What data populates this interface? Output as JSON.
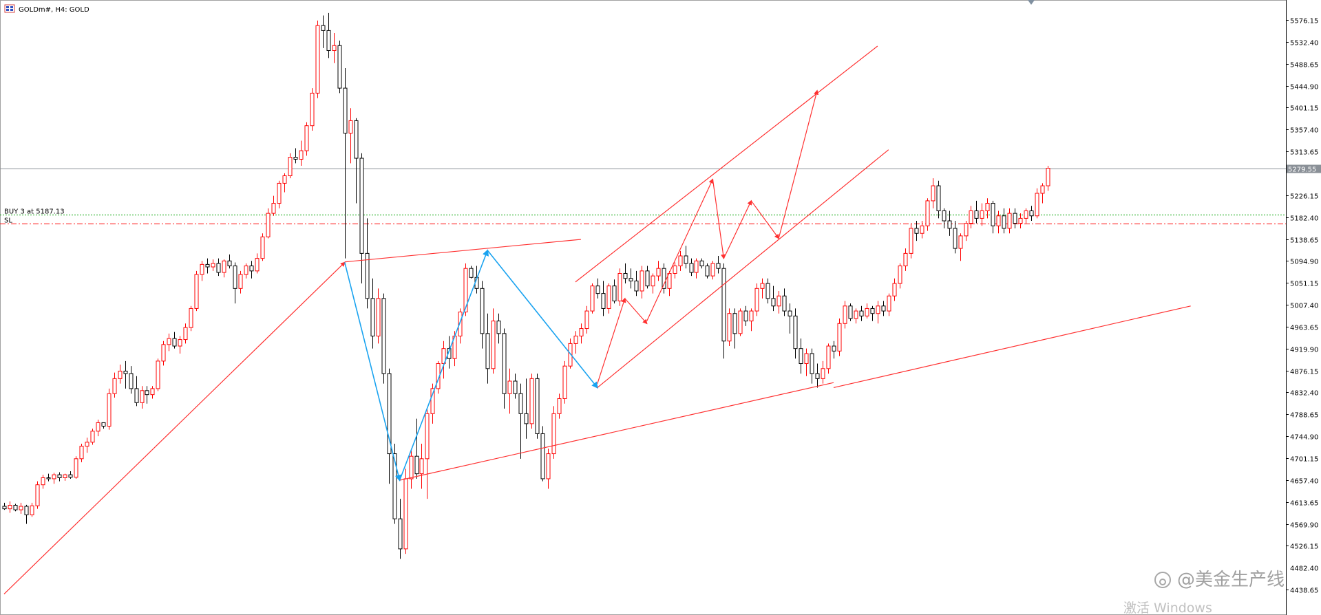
{
  "window": {
    "title": "GOLDm#, H4:  GOLD",
    "icon": "chart-window-icon"
  },
  "chart_data": {
    "type": "candlestick",
    "symbol": "GOLDm#",
    "timeframe": "H4",
    "description": "GOLD",
    "grid": false,
    "y_axis": {
      "position": "right",
      "ticks": [
        5576.15,
        5532.4,
        5488.65,
        5444.9,
        5401.15,
        5357.4,
        5313.65,
        5226.15,
        5182.4,
        5138.65,
        5094.9,
        5051.15,
        5007.4,
        4963.65,
        4919.9,
        4876.15,
        4832.4,
        4788.65,
        4744.9,
        4701.15,
        4657.4,
        4613.65,
        4569.9,
        4526.15,
        4438.65
      ],
      "ylim": [
        4425,
        5600
      ]
    },
    "current_price": 5279.55,
    "current_price_label": "5279.55",
    "order": {
      "label": "BUY 3 at 5187.13",
      "price": 5187.13
    },
    "stop_loss": {
      "label": "SL",
      "price": 5170.0
    },
    "bull_color": "#ff0000",
    "bear_color": "#000000",
    "candles": [
      [
        4605,
        4612,
        4598,
        4600
      ],
      [
        4600,
        4615,
        4592,
        4607
      ],
      [
        4607,
        4610,
        4595,
        4598
      ],
      [
        4598,
        4612,
        4590,
        4605
      ],
      [
        4605,
        4608,
        4570,
        4588
      ],
      [
        4588,
        4612,
        4584,
        4606
      ],
      [
        4606,
        4655,
        4600,
        4648
      ],
      [
        4648,
        4668,
        4640,
        4662
      ],
      [
        4662,
        4670,
        4655,
        4660
      ],
      [
        4660,
        4672,
        4650,
        4668
      ],
      [
        4668,
        4673,
        4655,
        4662
      ],
      [
        4662,
        4670,
        4656,
        4668
      ],
      [
        4668,
        4675,
        4660,
        4663
      ],
      [
        4663,
        4705,
        4660,
        4700
      ],
      [
        4700,
        4730,
        4693,
        4725
      ],
      [
        4725,
        4742,
        4712,
        4733
      ],
      [
        4733,
        4760,
        4728,
        4755
      ],
      [
        4755,
        4778,
        4745,
        4772
      ],
      [
        4772,
        4770,
        4760,
        4765
      ],
      [
        4765,
        4840,
        4758,
        4830
      ],
      [
        4830,
        4872,
        4822,
        4860
      ],
      [
        4860,
        4888,
        4850,
        4875
      ],
      [
        4875,
        4895,
        4840,
        4870
      ],
      [
        4870,
        4885,
        4830,
        4840
      ],
      [
        4840,
        4865,
        4805,
        4812
      ],
      [
        4812,
        4845,
        4800,
        4836
      ],
      [
        4836,
        4845,
        4810,
        4828
      ],
      [
        4828,
        4845,
        4820,
        4840
      ],
      [
        4840,
        4900,
        4835,
        4895
      ],
      [
        4895,
        4935,
        4886,
        4928
      ],
      [
        4928,
        4950,
        4915,
        4940
      ],
      [
        4940,
        4953,
        4920,
        4925
      ],
      [
        4925,
        4945,
        4910,
        4938
      ],
      [
        4938,
        4970,
        4930,
        4962
      ],
      [
        4962,
        5005,
        4955,
        5000
      ],
      [
        5000,
        5075,
        4995,
        5068
      ],
      [
        5068,
        5095,
        5055,
        5088
      ],
      [
        5088,
        5100,
        5070,
        5083
      ],
      [
        5083,
        5098,
        5075,
        5090
      ],
      [
        5090,
        5100,
        5065,
        5072
      ],
      [
        5072,
        5098,
        5062,
        5095
      ],
      [
        5095,
        5108,
        5080,
        5085
      ],
      [
        5085,
        5092,
        5010,
        5040
      ],
      [
        5040,
        5075,
        5030,
        5068
      ],
      [
        5068,
        5090,
        5060,
        5085
      ],
      [
        5085,
        5095,
        5060,
        5075
      ],
      [
        5075,
        5110,
        5070,
        5100
      ],
      [
        5100,
        5150,
        5095,
        5143
      ],
      [
        5143,
        5200,
        5140,
        5190
      ],
      [
        5190,
        5225,
        5185,
        5210
      ],
      [
        5210,
        5255,
        5200,
        5250
      ],
      [
        5250,
        5270,
        5232,
        5265
      ],
      [
        5265,
        5310,
        5260,
        5302
      ],
      [
        5302,
        5320,
        5290,
        5298
      ],
      [
        5298,
        5335,
        5285,
        5315
      ],
      [
        5315,
        5372,
        5305,
        5365
      ],
      [
        5365,
        5440,
        5355,
        5430
      ],
      [
        5430,
        5575,
        5420,
        5565
      ],
      [
        5565,
        5585,
        5520,
        5555
      ],
      [
        5555,
        5590,
        5500,
        5515
      ],
      [
        5515,
        5550,
        5490,
        5525
      ],
      [
        5525,
        5535,
        5430,
        5440
      ],
      [
        5440,
        5480,
        5100,
        5350
      ],
      [
        5350,
        5400,
        5290,
        5375
      ],
      [
        5375,
        5380,
        5210,
        5300
      ],
      [
        5300,
        5310,
        5050,
        5110
      ],
      [
        5110,
        5180,
        5000,
        5020
      ],
      [
        5020,
        5060,
        4920,
        4945
      ],
      [
        4945,
        5040,
        4930,
        5020
      ],
      [
        5020,
        5030,
        4850,
        4870
      ],
      [
        4870,
        4880,
        4650,
        4710
      ],
      [
        4710,
        4730,
        4570,
        4580
      ],
      [
        4580,
        4620,
        4500,
        4520
      ],
      [
        4520,
        4680,
        4510,
        4660
      ],
      [
        4660,
        4720,
        4640,
        4705
      ],
      [
        4705,
        4780,
        4660,
        4670
      ],
      [
        4670,
        4730,
        4640,
        4700
      ],
      [
        4700,
        4800,
        4620,
        4790
      ],
      [
        4790,
        4850,
        4770,
        4840
      ],
      [
        4840,
        4895,
        4830,
        4890
      ],
      [
        4890,
        4935,
        4860,
        4920
      ],
      [
        4920,
        4945,
        4880,
        4900
      ],
      [
        4900,
        4955,
        4885,
        4945
      ],
      [
        4945,
        5000,
        4930,
        4993
      ],
      [
        4993,
        5090,
        4985,
        5080
      ],
      [
        5080,
        5085,
        5060,
        5062
      ],
      [
        5062,
        5085,
        5030,
        5040
      ],
      [
        5040,
        5055,
        4920,
        4950
      ],
      [
        4950,
        4990,
        4850,
        4880
      ],
      [
        4880,
        5000,
        4870,
        4975
      ],
      [
        4975,
        4990,
        4930,
        4950
      ],
      [
        4950,
        4960,
        4800,
        4830
      ],
      [
        4830,
        4880,
        4790,
        4855
      ],
      [
        4855,
        4870,
        4820,
        4830
      ],
      [
        4830,
        4850,
        4700,
        4790
      ],
      [
        4790,
        4860,
        4740,
        4770
      ],
      [
        4770,
        4870,
        4760,
        4860
      ],
      [
        4860,
        4870,
        4740,
        4750
      ],
      [
        4750,
        4765,
        4655,
        4660
      ],
      [
        4660,
        4720,
        4640,
        4710
      ],
      [
        4710,
        4805,
        4700,
        4790
      ],
      [
        4790,
        4830,
        4780,
        4820
      ],
      [
        4820,
        4895,
        4810,
        4885
      ],
      [
        4885,
        4940,
        4880,
        4930
      ],
      [
        4930,
        4955,
        4910,
        4945
      ],
      [
        4945,
        4970,
        4930,
        4960
      ],
      [
        4960,
        5005,
        4950,
        4995
      ],
      [
        4995,
        5050,
        4990,
        5045
      ],
      [
        5045,
        5060,
        5020,
        5030
      ],
      [
        5030,
        5055,
        4985,
        5000
      ],
      [
        5000,
        5050,
        4990,
        5045
      ],
      [
        5045,
        5058,
        5010,
        5015
      ],
      [
        5015,
        5080,
        5005,
        5070
      ],
      [
        5070,
        5090,
        5050,
        5060
      ],
      [
        5060,
        5080,
        5040,
        5055
      ],
      [
        5055,
        5075,
        5025,
        5035
      ],
      [
        5035,
        5085,
        5020,
        5075
      ],
      [
        5075,
        5085,
        5040,
        5045
      ],
      [
        5045,
        5070,
        5030,
        5065
      ],
      [
        5065,
        5095,
        5055,
        5080
      ],
      [
        5080,
        5090,
        5030,
        5040
      ],
      [
        5040,
        5075,
        5025,
        5070
      ],
      [
        5070,
        5092,
        5060,
        5085
      ],
      [
        5085,
        5115,
        5075,
        5105
      ],
      [
        5105,
        5125,
        5080,
        5090
      ],
      [
        5090,
        5100,
        5065,
        5072
      ],
      [
        5072,
        5100,
        5060,
        5095
      ],
      [
        5095,
        5100,
        5080,
        5085
      ],
      [
        5085,
        5090,
        5060,
        5065
      ],
      [
        5065,
        5095,
        5058,
        5090
      ],
      [
        5090,
        5105,
        5070,
        5080
      ],
      [
        5080,
        5090,
        4900,
        4935
      ],
      [
        4935,
        5000,
        4925,
        4990
      ],
      [
        4990,
        5000,
        4920,
        4950
      ],
      [
        4950,
        5000,
        4945,
        4995
      ],
      [
        4995,
        5005,
        4965,
        4975
      ],
      [
        4975,
        5000,
        4955,
        4995
      ],
      [
        4995,
        5050,
        4985,
        5040
      ],
      [
        5040,
        5060,
        5020,
        5050
      ],
      [
        5050,
        5060,
        5010,
        5020
      ],
      [
        5020,
        5045,
        4995,
        5005
      ],
      [
        5005,
        5035,
        4990,
        5025
      ],
      [
        5025,
        5040,
        4985,
        4995
      ],
      [
        4995,
        5010,
        4950,
        4985
      ],
      [
        4985,
        5000,
        4900,
        4920
      ],
      [
        4920,
        4940,
        4870,
        4890
      ],
      [
        4890,
        4920,
        4865,
        4910
      ],
      [
        4910,
        4920,
        4850,
        4870
      ],
      [
        4870,
        4890,
        4842,
        4860
      ],
      [
        4860,
        4895,
        4850,
        4880
      ],
      [
        4880,
        4930,
        4870,
        4925
      ],
      [
        4925,
        4935,
        4900,
        4915
      ],
      [
        4915,
        4980,
        4905,
        4970
      ],
      [
        4970,
        5015,
        4960,
        5005
      ],
      [
        5005,
        5010,
        4975,
        4980
      ],
      [
        4980,
        5000,
        4970,
        4995
      ],
      [
        4995,
        5005,
        4975,
        4985
      ],
      [
        4985,
        5010,
        4980,
        5000
      ],
      [
        5000,
        5005,
        4975,
        4990
      ],
      [
        4990,
        5015,
        4970,
        5005
      ],
      [
        5005,
        5015,
        4985,
        4995
      ],
      [
        4995,
        5030,
        4985,
        5025
      ],
      [
        5025,
        5060,
        5015,
        5050
      ],
      [
        5050,
        5090,
        5040,
        5085
      ],
      [
        5085,
        5120,
        5075,
        5110
      ],
      [
        5110,
        5170,
        5100,
        5160
      ],
      [
        5160,
        5175,
        5135,
        5150
      ],
      [
        5150,
        5175,
        5140,
        5165
      ],
      [
        5165,
        5220,
        5155,
        5215
      ],
      [
        5215,
        5260,
        5200,
        5245
      ],
      [
        5245,
        5255,
        5180,
        5195
      ],
      [
        5195,
        5200,
        5160,
        5175
      ],
      [
        5175,
        5195,
        5145,
        5160
      ],
      [
        5160,
        5175,
        5110,
        5120
      ],
      [
        5120,
        5150,
        5095,
        5145
      ],
      [
        5145,
        5175,
        5135,
        5170
      ],
      [
        5170,
        5205,
        5160,
        5195
      ],
      [
        5195,
        5215,
        5170,
        5180
      ],
      [
        5180,
        5210,
        5165,
        5195
      ],
      [
        5195,
        5220,
        5180,
        5210
      ],
      [
        5210,
        5215,
        5150,
        5165
      ],
      [
        5165,
        5195,
        5150,
        5185
      ],
      [
        5185,
        5200,
        5150,
        5160
      ],
      [
        5160,
        5200,
        5150,
        5190
      ],
      [
        5190,
        5200,
        5160,
        5170
      ],
      [
        5170,
        5190,
        5160,
        5180
      ],
      [
        5180,
        5200,
        5170,
        5195
      ],
      [
        5195,
        5205,
        5175,
        5185
      ],
      [
        5185,
        5240,
        5180,
        5230
      ],
      [
        5230,
        5250,
        5210,
        5245
      ],
      [
        5245,
        5285,
        5235,
        5280
      ]
    ],
    "annotations": [
      {
        "kind": "trend-arrow",
        "color": "red",
        "points": [
          [
            0,
            4430
          ],
          [
            62,
            5092
          ]
        ]
      },
      {
        "kind": "line",
        "color": "red",
        "points": [
          [
            62,
            5093
          ],
          [
            105,
            5138
          ]
        ]
      },
      {
        "kind": "line",
        "color": "red",
        "points": [
          [
            72,
            4657
          ],
          [
            151,
            4852
          ]
        ]
      },
      {
        "kind": "line",
        "color": "red",
        "points": [
          [
            151,
            4842
          ],
          [
            216,
            5005
          ]
        ]
      },
      {
        "kind": "arrow",
        "color": "blue",
        "points": [
          [
            62,
            5092
          ],
          [
            72,
            4657
          ]
        ]
      },
      {
        "kind": "arrow",
        "color": "blue",
        "points": [
          [
            72,
            4657
          ],
          [
            88,
            5116
          ]
        ]
      },
      {
        "kind": "arrow",
        "color": "blue",
        "points": [
          [
            88,
            5116
          ],
          [
            108,
            4842
          ]
        ]
      },
      {
        "kind": "channel-upper",
        "color": "red",
        "points": [
          [
            104,
            5053
          ],
          [
            159,
            5524
          ]
        ]
      },
      {
        "kind": "channel-lower",
        "color": "red",
        "points": [
          [
            108,
            4842
          ],
          [
            161,
            5317
          ]
        ]
      },
      {
        "kind": "arrow",
        "color": "red",
        "points": [
          [
            108,
            4850
          ],
          [
            113,
            5020
          ]
        ]
      },
      {
        "kind": "arrow",
        "color": "red",
        "points": [
          [
            113,
            5020
          ],
          [
            117,
            4970
          ]
        ]
      },
      {
        "kind": "arrow",
        "color": "red",
        "points": [
          [
            117,
            4975
          ],
          [
            129,
            5258
          ]
        ]
      },
      {
        "kind": "arrow",
        "color": "red",
        "points": [
          [
            129,
            5258
          ],
          [
            131,
            5100
          ]
        ]
      },
      {
        "kind": "arrow",
        "color": "red",
        "points": [
          [
            131,
            5100
          ],
          [
            136,
            5215
          ]
        ]
      },
      {
        "kind": "arrow",
        "color": "red",
        "points": [
          [
            136,
            5215
          ],
          [
            141,
            5140
          ]
        ]
      },
      {
        "kind": "arrow",
        "color": "red",
        "points": [
          [
            141,
            5140
          ],
          [
            148,
            5435
          ]
        ]
      }
    ],
    "cursor_price_label": "4482.40"
  },
  "watermark": {
    "brand": "@美金生产线",
    "activate": "激活 Windows"
  }
}
